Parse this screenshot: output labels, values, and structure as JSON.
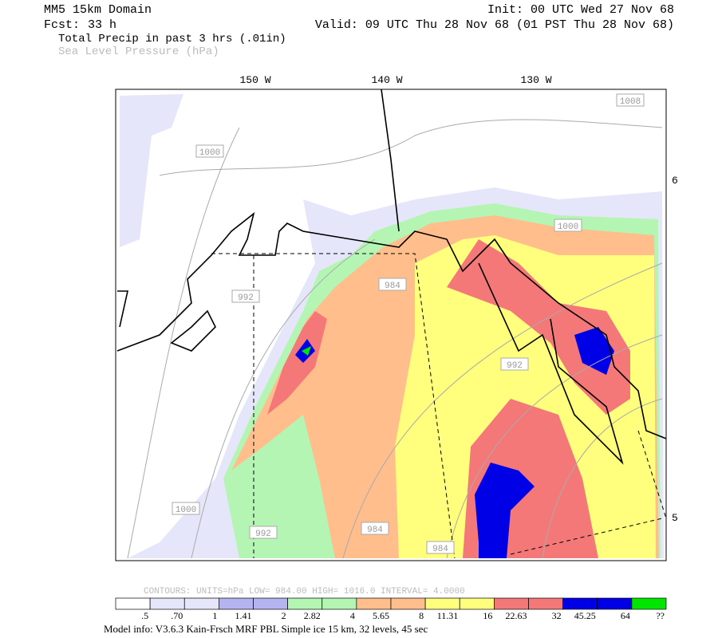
{
  "header": {
    "domain": "MM5 15km Domain",
    "init": "Init: 00 UTC Wed 27 Nov 68",
    "fcst_label": "Fcst:",
    "fcst_value": "33 h",
    "valid": "Valid: 09 UTC Thu 28 Nov 68 (01 PST Thu 28 Nov 68)",
    "field_1": "Total Precip in past 3 hrs (.01in)",
    "field_2": "Sea Level Pressure (hPa)"
  },
  "map": {
    "lon_labels": [
      "150 W",
      "140 W",
      "130 W"
    ],
    "lat_labels": [
      "6",
      "5"
    ],
    "contour_labels": [
      "1008",
      "1000",
      "1000",
      "984",
      "992",
      "992",
      "1000",
      "992",
      "984",
      "984"
    ]
  },
  "legend": {
    "contours": "CONTOURS:  UNITS=hPa  LOW=  984.00      HIGH=  1016.0      INTERVAL=    4.0000",
    "colors": [
      "#ffffff",
      "#e6e6fa",
      "#e6e6fa",
      "#b4b4f0",
      "#b4b4f0",
      "#b4f5b4",
      "#b4f5b4",
      "#ffbe8c",
      "#ffbe8c",
      "#ffff7d",
      "#ffff7d",
      "#f57878",
      "#f57878",
      "#0000e6",
      "#0000e6",
      "#00e600"
    ],
    "labels": [
      ".5",
      ".70",
      "1",
      "1.41",
      "2",
      "2.82",
      "4",
      "5.65",
      "8",
      "11.31",
      "16",
      "22.63",
      "32",
      "45.25",
      "64",
      "??"
    ]
  },
  "footer": "Model info: V3.6.3 Kain-Frsch MRF PBL    Simple ice   15 km,  32 levels,   45 sec"
}
